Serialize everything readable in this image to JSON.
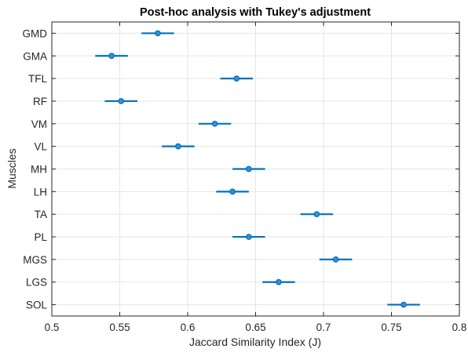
{
  "chart_data": {
    "type": "scatter",
    "subtype": "errorbar",
    "title": "Post-hoc analysis with Tukey's adjustment",
    "xlabel": "Jaccard Similarity Index (J)",
    "ylabel": "Muscles",
    "xlim": [
      0.5,
      0.8
    ],
    "xticks": [
      0.5,
      0.55,
      0.6,
      0.65,
      0.7,
      0.75,
      0.8
    ],
    "xtick_labels": [
      "0.5",
      "0.55",
      "0.6",
      "0.65",
      "0.7",
      "0.75",
      "0.8"
    ],
    "grid": true,
    "categories": [
      "GMD",
      "GMA",
      "TFL",
      "RF",
      "VM",
      "VL",
      "MH",
      "LH",
      "TA",
      "PL",
      "MGS",
      "LGS",
      "SOL"
    ],
    "means": [
      0.578,
      0.544,
      0.636,
      0.551,
      0.62,
      0.593,
      0.645,
      0.633,
      0.695,
      0.645,
      0.709,
      0.667,
      0.759
    ],
    "lower": [
      0.566,
      0.532,
      0.624,
      0.539,
      0.608,
      0.581,
      0.633,
      0.621,
      0.683,
      0.633,
      0.697,
      0.655,
      0.747
    ],
    "upper": [
      0.59,
      0.556,
      0.648,
      0.563,
      0.632,
      0.605,
      0.657,
      0.645,
      0.707,
      0.657,
      0.721,
      0.679,
      0.771
    ],
    "colors": {
      "series": "#0072BD",
      "marker_fill": "#3a8fd4",
      "grid": "#e6e6e6",
      "axis": "#262626"
    }
  }
}
